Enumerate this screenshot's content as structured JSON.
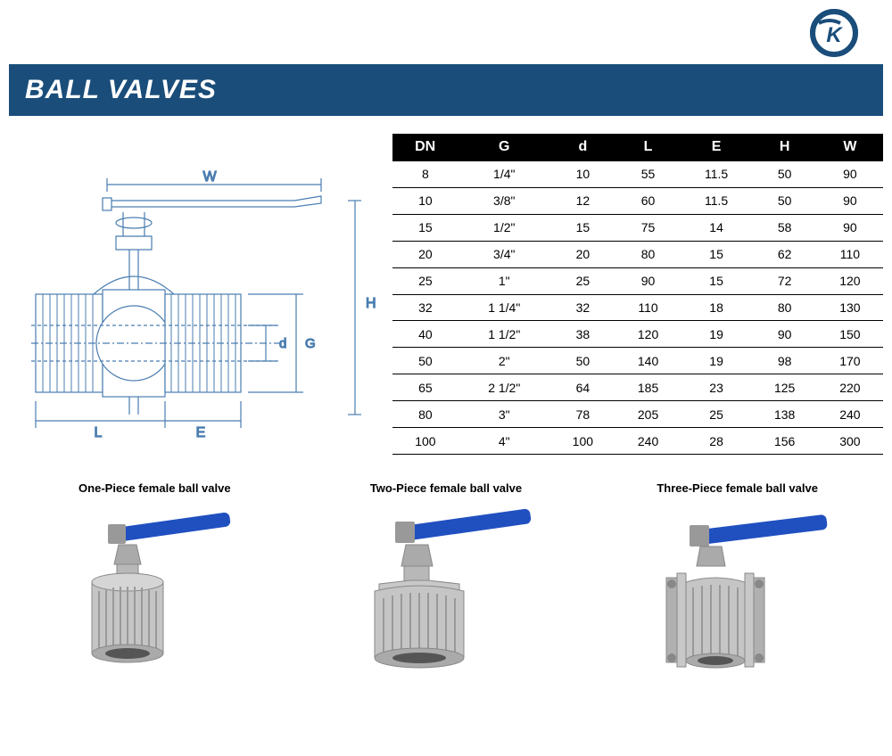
{
  "header": {
    "title": "BALL VALVES",
    "bar_color": "#1a4d7a",
    "text_color": "#ffffff"
  },
  "logo": {
    "primary_color": "#1a4d7a",
    "letters": "SK"
  },
  "diagram": {
    "labels": {
      "W": "W",
      "H": "H",
      "d": "d",
      "G": "G",
      "L": "L",
      "E": "E"
    },
    "line_color": "#4a7db0"
  },
  "spec_table": {
    "header_bg": "#000000",
    "header_text": "#ffffff",
    "border_color": "#000000",
    "columns": [
      "DN",
      "G",
      "d",
      "L",
      "E",
      "H",
      "W"
    ],
    "rows": [
      [
        "8",
        "1/4\"",
        "10",
        "55",
        "11.5",
        "50",
        "90"
      ],
      [
        "10",
        "3/8\"",
        "12",
        "60",
        "11.5",
        "50",
        "90"
      ],
      [
        "15",
        "1/2\"",
        "15",
        "75",
        "14",
        "58",
        "90"
      ],
      [
        "20",
        "3/4\"",
        "20",
        "80",
        "15",
        "62",
        "110"
      ],
      [
        "25",
        "1\"",
        "25",
        "90",
        "15",
        "72",
        "120"
      ],
      [
        "32",
        "1 1/4\"",
        "32",
        "110",
        "18",
        "80",
        "130"
      ],
      [
        "40",
        "1 1/2\"",
        "38",
        "120",
        "19",
        "90",
        "150"
      ],
      [
        "50",
        "2\"",
        "50",
        "140",
        "19",
        "98",
        "170"
      ],
      [
        "65",
        "2 1/2\"",
        "64",
        "185",
        "23",
        "125",
        "220"
      ],
      [
        "80",
        "3\"",
        "78",
        "205",
        "25",
        "138",
        "240"
      ],
      [
        "100",
        "4\"",
        "100",
        "240",
        "28",
        "156",
        "300"
      ]
    ]
  },
  "products": [
    {
      "title": "One-Piece female ball valve",
      "handle_color": "#2050c0",
      "body_color": "#b8b8b8"
    },
    {
      "title": "Two-Piece female ball valve",
      "handle_color": "#2050c0",
      "body_color": "#b8b8b8"
    },
    {
      "title": "Three-Piece female ball valve",
      "handle_color": "#2050c0",
      "body_color": "#b8b8b8"
    }
  ]
}
